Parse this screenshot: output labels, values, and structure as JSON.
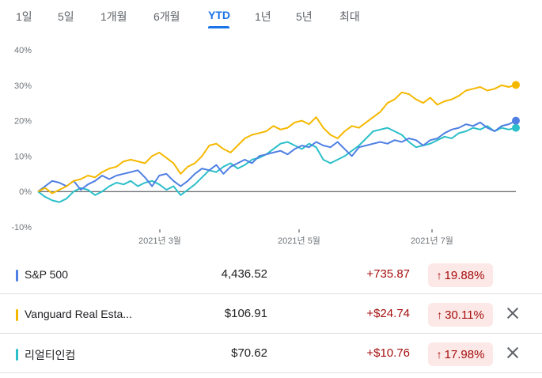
{
  "range_tabs": [
    {
      "label": "1일",
      "selected": false
    },
    {
      "label": "5일",
      "selected": false
    },
    {
      "label": "1개월",
      "selected": false
    },
    {
      "label": "6개월",
      "selected": false
    },
    {
      "label": "YTD",
      "selected": true
    },
    {
      "label": "1년",
      "selected": false
    },
    {
      "label": "5년",
      "selected": false
    },
    {
      "label": "최대",
      "selected": false
    }
  ],
  "colors": {
    "accent": "#1a73e8",
    "sp500": "#4f7fe3",
    "vanguard": "#f5b800",
    "realty": "#2bbfc9",
    "negative_text": "#a50e0e",
    "negative_bg": "#fce8e6"
  },
  "chart_data": {
    "type": "line",
    "ylim": [
      -10,
      40
    ],
    "y_ticks": [
      "40%",
      "30%",
      "20%",
      "10%",
      "0%",
      "-10%"
    ],
    "x_ticks": [
      "2021년 3월",
      "2021년 5월",
      "2021년 7월"
    ],
    "series": [
      {
        "name": "S&P 500",
        "color_key": "sp500",
        "values": [
          0,
          1.5,
          3,
          2.5,
          1.5,
          3,
          0.5,
          2,
          3,
          4.5,
          3.5,
          4.5,
          5,
          5.5,
          6,
          4,
          1.5,
          4.5,
          5,
          3,
          1.5,
          3,
          5,
          6.5,
          6,
          7.5,
          5,
          7,
          8,
          9,
          8,
          10,
          10.5,
          11,
          11.5,
          10.5,
          12,
          13,
          12.5,
          14,
          13,
          12.5,
          14,
          12,
          10,
          12.5,
          13,
          13.5,
          14,
          13.5,
          14.5,
          14,
          15,
          14.5,
          13,
          14.5,
          15,
          16.5,
          17.5,
          18,
          19,
          18.5,
          19.5,
          18,
          17,
          18.5,
          19,
          20
        ]
      },
      {
        "name": "Vanguard Real Estate",
        "color_key": "vanguard",
        "values": [
          0,
          1,
          -0.5,
          0.5,
          1.5,
          3,
          3.5,
          4.5,
          4,
          5.5,
          6.5,
          7,
          8.5,
          9,
          8.5,
          8,
          10,
          11,
          9.5,
          8,
          5,
          7,
          8,
          10,
          13,
          13.5,
          12,
          11,
          13,
          15,
          16,
          16.5,
          17,
          18.5,
          17.5,
          18,
          19.5,
          20,
          19,
          21,
          18,
          16,
          15,
          17,
          18.5,
          18,
          19.5,
          21,
          22.5,
          25,
          26,
          28,
          27.5,
          26,
          25,
          26.5,
          24.5,
          25.5,
          26,
          27,
          28.5,
          29,
          29.5,
          28.5,
          29,
          30,
          29.5,
          30.1
        ]
      },
      {
        "name": "리얼티인컴",
        "color_key": "realty",
        "values": [
          0,
          -1.5,
          -2.5,
          -3,
          -2,
          0,
          1,
          0.5,
          -1,
          0,
          1.5,
          2.5,
          2,
          3,
          1.5,
          2.5,
          3,
          2,
          0.5,
          1.5,
          -1,
          0.5,
          2,
          4,
          6,
          5.5,
          7,
          8,
          6.5,
          7.5,
          9,
          9.5,
          10.5,
          12,
          13.5,
          14,
          13,
          12,
          13.5,
          12.5,
          9,
          8,
          9,
          10,
          11.5,
          13,
          15,
          17,
          17.5,
          18,
          17,
          16,
          14,
          12.5,
          13,
          13.5,
          14.5,
          15.5,
          15,
          16.5,
          17,
          18,
          17.5,
          18.5,
          17,
          18,
          17.5,
          17.98
        ]
      }
    ]
  },
  "holdings": [
    {
      "name": "S&P 500",
      "price": "4,436.52",
      "change": "+735.87",
      "percent": "19.88%",
      "arrow": "↑",
      "color_key": "sp500",
      "removable": false
    },
    {
      "name": "Vanguard Real Esta...",
      "price": "$106.91",
      "change": "+$24.74",
      "percent": "30.11%",
      "arrow": "↑",
      "color_key": "vanguard",
      "removable": true
    },
    {
      "name": "리얼티인컴",
      "price": "$70.62",
      "change": "+$10.76",
      "percent": "17.98%",
      "arrow": "↑",
      "color_key": "realty",
      "removable": true
    }
  ]
}
